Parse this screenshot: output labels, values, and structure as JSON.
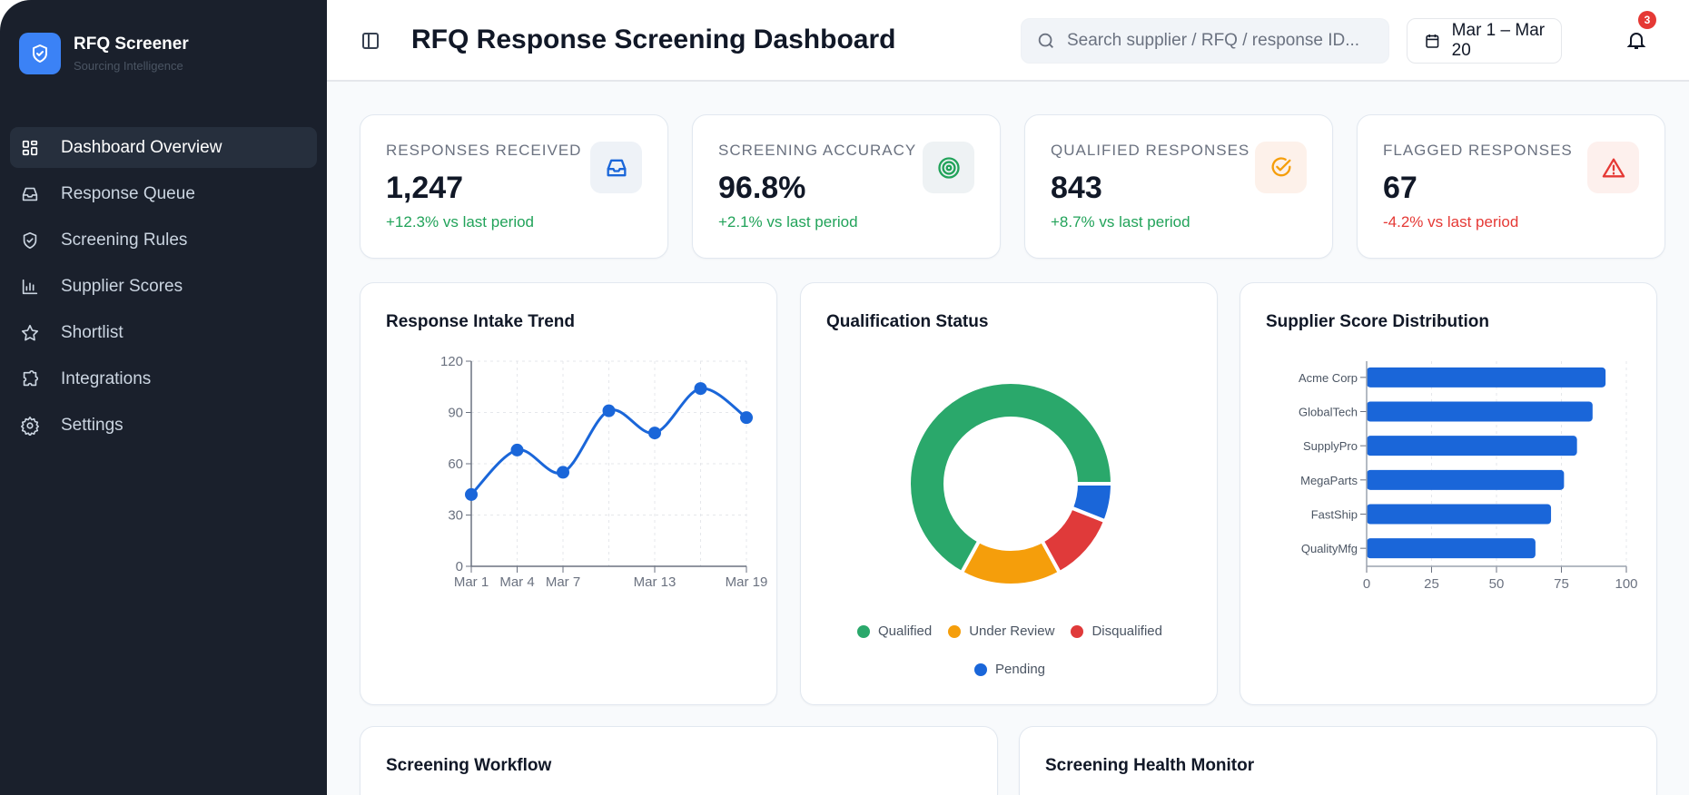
{
  "app": {
    "name": "RFQ Screener",
    "tagline": "Sourcing Intelligence"
  },
  "sidebar": {
    "items": [
      {
        "label": "Dashboard Overview",
        "icon": "grid-icon",
        "active": true
      },
      {
        "label": "Response Queue",
        "icon": "inbox-icon"
      },
      {
        "label": "Screening Rules",
        "icon": "shield-check-icon"
      },
      {
        "label": "Supplier Scores",
        "icon": "bar-chart-icon"
      },
      {
        "label": "Shortlist",
        "icon": "star-icon"
      },
      {
        "label": "Integrations",
        "icon": "puzzle-icon"
      },
      {
        "label": "Settings",
        "icon": "gear-icon"
      }
    ]
  },
  "header": {
    "title": "RFQ Response Screening Dashboard",
    "search_placeholder": "Search supplier / RFQ / response ID...",
    "date_range": "Mar 1 – Mar 20",
    "notification_count": "3"
  },
  "kpis": [
    {
      "label": "RESPONSES RECEIVED",
      "value": "1,247",
      "delta": "+12.3% vs last period",
      "trend": "up",
      "icon": "inbox-icon",
      "color": "#1a66d9",
      "bg": "#eef2f7"
    },
    {
      "label": "SCREENING ACCURACY",
      "value": "96.8%",
      "delta": "+2.1% vs last period",
      "trend": "up",
      "icon": "target-icon",
      "color": "#22a35a",
      "bg": "#eef2f4"
    },
    {
      "label": "QUALIFIED RESPONSES",
      "value": "843",
      "delta": "+8.7% vs last period",
      "trend": "up",
      "icon": "check-circle-icon",
      "color": "#f59e0b",
      "bg": "#fdf1ea"
    },
    {
      "label": "FLAGGED RESPONSES",
      "value": "67",
      "delta": "-4.2% vs last period",
      "trend": "down",
      "icon": "warning-icon",
      "color": "#e53935",
      "bg": "#fdf0ed"
    }
  ],
  "colors": {
    "up": "#22a35a",
    "down": "#e53935",
    "accent": "#1a66d9"
  },
  "chart_data": [
    {
      "type": "line",
      "title": "Response Intake Trend",
      "x": [
        "Mar 1",
        "Mar 4",
        "Mar 7",
        "Mar 10",
        "Mar 13",
        "Mar 16",
        "Mar 19"
      ],
      "x_tick_labels": [
        "Mar 1",
        "Mar 4",
        "Mar 7",
        "",
        "Mar 13",
        "",
        "Mar 19"
      ],
      "values": [
        42,
        68,
        55,
        91,
        78,
        104,
        87
      ],
      "ylim": [
        0,
        120
      ],
      "y_ticks": [
        0,
        30,
        60,
        90,
        120
      ],
      "grid": true,
      "color": "#1a66d9"
    },
    {
      "type": "pie",
      "title": "Qualification Status",
      "donut": true,
      "categories": [
        "Qualified",
        "Under Review",
        "Disqualified",
        "Pending"
      ],
      "values": [
        67,
        16,
        11,
        6
      ],
      "unit": "%",
      "colors": [
        "#2aa86b",
        "#f59e0b",
        "#e03a3a",
        "#1a66d9"
      ],
      "legend": "bottom"
    },
    {
      "type": "bar",
      "orientation": "horizontal",
      "title": "Supplier Score Distribution",
      "categories": [
        "Acme Corp",
        "GlobalTech",
        "SupplyPro",
        "MegaParts",
        "FastShip",
        "QualityMfg"
      ],
      "values": [
        92,
        87,
        81,
        76,
        71,
        65
      ],
      "xlim": [
        0,
        100
      ],
      "x_ticks": [
        0,
        25,
        50,
        75,
        100
      ],
      "grid": true,
      "color": "#1a66d9"
    }
  ],
  "panels": {
    "workflow": "Screening Workflow",
    "health": "Screening Health Monitor"
  }
}
